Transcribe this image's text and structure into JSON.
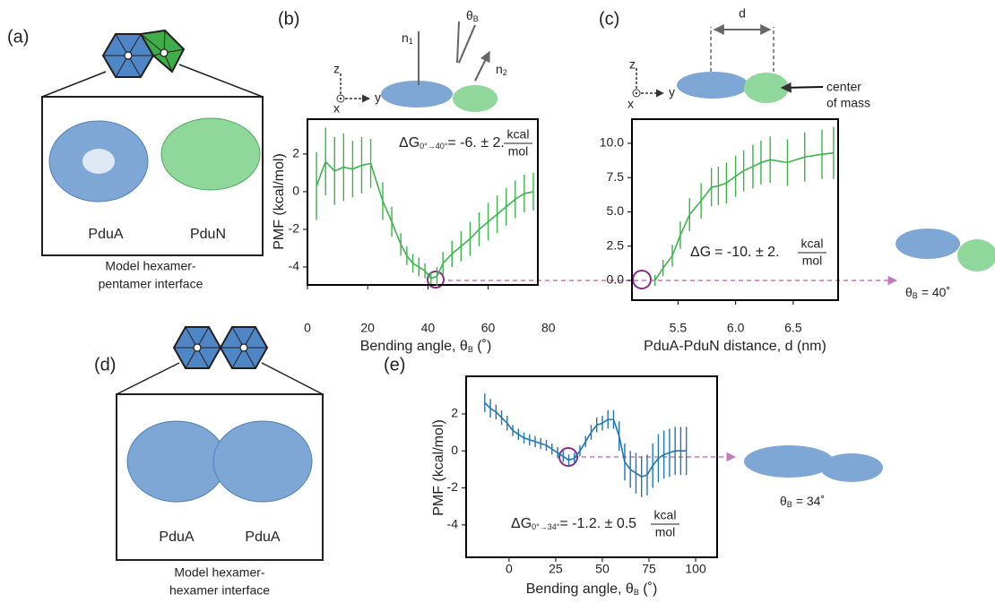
{
  "chart_data": [
    {
      "type": "line",
      "y_label": "PMF (kcal/mol)",
      "x_label": "Bending angle, θ",
      "x_label_sub": "B",
      "x_label_end": " (˚)",
      "x": [
        3,
        6,
        9,
        12,
        15,
        18,
        21,
        25,
        28,
        31,
        33,
        35,
        37,
        39,
        41,
        43,
        45,
        48,
        51,
        54,
        57,
        60,
        63,
        66,
        69,
        72,
        75
      ],
      "series": [
        {
          "color": "#3cb44b",
          "values": [
            0.3,
            1.6,
            1.1,
            1.3,
            1.2,
            1.4,
            1.5,
            -0.5,
            -1.6,
            -2.8,
            -3.4,
            -3.8,
            -4.0,
            -4.2,
            -4.6,
            -4.5,
            -3.8,
            -3.3,
            -2.9,
            -2.5,
            -2.0,
            -1.6,
            -1.2,
            -0.8,
            -0.4,
            -0.1,
            0.0
          ],
          "errors": [
            1.8,
            1.8,
            1.8,
            1.8,
            1.5,
            1.5,
            1.3,
            1.0,
            0.8,
            0.6,
            0.5,
            0.5,
            0.5,
            0.4,
            0.3,
            0.5,
            0.6,
            0.7,
            0.8,
            0.9,
            0.9,
            1.0,
            1.0,
            1.0,
            1.0,
            1.0,
            1.0
          ]
        }
      ],
      "xlim": [
        0,
        76.5
      ],
      "xticks": [
        0,
        20,
        40,
        60,
        80
      ],
      "ylim": [
        -4.95,
        3.85
      ],
      "yticks": [
        2,
        0,
        -2,
        -4
      ],
      "annotation": {
        "delta": "ΔG",
        "sub": "0°→40°",
        "text": "= -6. ± 2.",
        "num": "kcal",
        "den": "mol"
      }
    },
    {
      "type": "line",
      "x_label": "PduA-PduN distance, d (nm)",
      "x": [
        5.3,
        5.37,
        5.45,
        5.52,
        5.6,
        5.7,
        5.79,
        5.85,
        5.92,
        6.0,
        6.07,
        6.15,
        6.22,
        6.3,
        6.45,
        6.6,
        6.75,
        6.85
      ],
      "series": [
        {
          "color": "#3cb44b",
          "values": [
            0.0,
            0.9,
            1.8,
            3.3,
            4.8,
            5.8,
            6.8,
            6.9,
            7.1,
            7.6,
            8.0,
            8.3,
            8.6,
            8.8,
            8.6,
            9.0,
            9.2,
            9.3
          ],
          "errors": [
            0.4,
            0.6,
            0.8,
            1.0,
            1.2,
            1.3,
            1.4,
            1.4,
            1.5,
            1.5,
            1.5,
            1.6,
            1.6,
            1.7,
            1.7,
            1.8,
            1.8,
            1.9
          ]
        }
      ],
      "xlim": [
        5.1,
        6.89
      ],
      "xticks": [
        5.5,
        {
          "value": 6,
          "label": "6.0"
        },
        6.5
      ],
      "ylim": [
        -1.44,
        11.76
      ],
      "yticks": [
        {
          "value": 10,
          "label": "10.0"
        },
        7.5,
        {
          "value": 5,
          "label": "5.0"
        },
        2.5,
        {
          "value": 0,
          "label": "0.0"
        }
      ],
      "annotation": {
        "delta": "ΔG",
        "text": "= -10. ± 2.",
        "num": "kcal",
        "den": "mol"
      }
    },
    {
      "type": "line",
      "y_label": "PMF (kcal/mol)",
      "x_label": "Bending angle, θ",
      "x_label_sub": "B",
      "x_label_end": " (˚)",
      "x": [
        -13,
        -10,
        -7,
        -4,
        -1,
        2,
        5,
        8,
        11,
        14,
        17,
        20,
        23,
        26,
        29,
        32,
        35,
        38,
        41,
        44,
        47,
        50,
        53,
        56,
        59,
        62,
        65,
        68,
        71,
        74,
        77,
        80,
        83,
        86,
        89,
        92,
        95
      ],
      "series": [
        {
          "color": "#1f77b4",
          "values": [
            2.6,
            2.3,
            2.1,
            1.8,
            1.5,
            1.1,
            0.9,
            0.7,
            0.6,
            0.5,
            0.4,
            0.3,
            0.1,
            -0.1,
            -0.3,
            -0.5,
            -0.4,
            0.0,
            0.5,
            1.0,
            1.4,
            1.5,
            1.7,
            1.7,
            0.8,
            -0.6,
            -1.0,
            -1.2,
            -1.4,
            -1.3,
            -0.8,
            -0.4,
            -0.2,
            -0.1,
            0.0,
            0.0,
            0.0
          ],
          "errors": [
            0.5,
            0.5,
            0.4,
            0.4,
            0.4,
            0.3,
            0.3,
            0.3,
            0.3,
            0.3,
            0.3,
            0.3,
            0.3,
            0.3,
            0.3,
            0.3,
            0.3,
            0.3,
            0.3,
            0.4,
            0.4,
            0.4,
            0.5,
            0.5,
            0.8,
            1.0,
            1.0,
            1.1,
            1.1,
            1.1,
            1.2,
            1.3,
            1.3,
            1.3,
            1.3,
            1.3,
            1.3
          ]
        }
      ],
      "xlim": [
        -23,
        111.5
      ],
      "xticks": [
        0,
        25,
        50,
        75,
        100
      ],
      "ylim": [
        -5.75,
        4.03
      ],
      "yticks": [
        2,
        0,
        -2,
        -4
      ],
      "annotation": {
        "delta": "ΔG",
        "sub": "0°→34°",
        "text": "= -1.2. ± 0.5",
        "num": "kcal",
        "den": "mol"
      }
    }
  ],
  "figure": {
    "panels": [
      "(a)",
      "(b)",
      "(c)",
      "(d)",
      "(e)"
    ],
    "hexamer": "PduA",
    "pentamer": "PduN",
    "caption_a": [
      "Model hexamer-",
      "pentamer interface"
    ],
    "caption_d": [
      "Model hexamer-",
      "hexamer interface"
    ],
    "axis_z": "z",
    "axis_y": "y",
    "axis_x": "x",
    "normal": "n",
    "normal_1": "1",
    "normal_2": "2",
    "theta": "θ",
    "theta_sub": "B",
    "distance": "d",
    "com": [
      "center",
      "of mass"
    ],
    "angle_b": "= 40˚",
    "angle_e": "= 34˚"
  }
}
